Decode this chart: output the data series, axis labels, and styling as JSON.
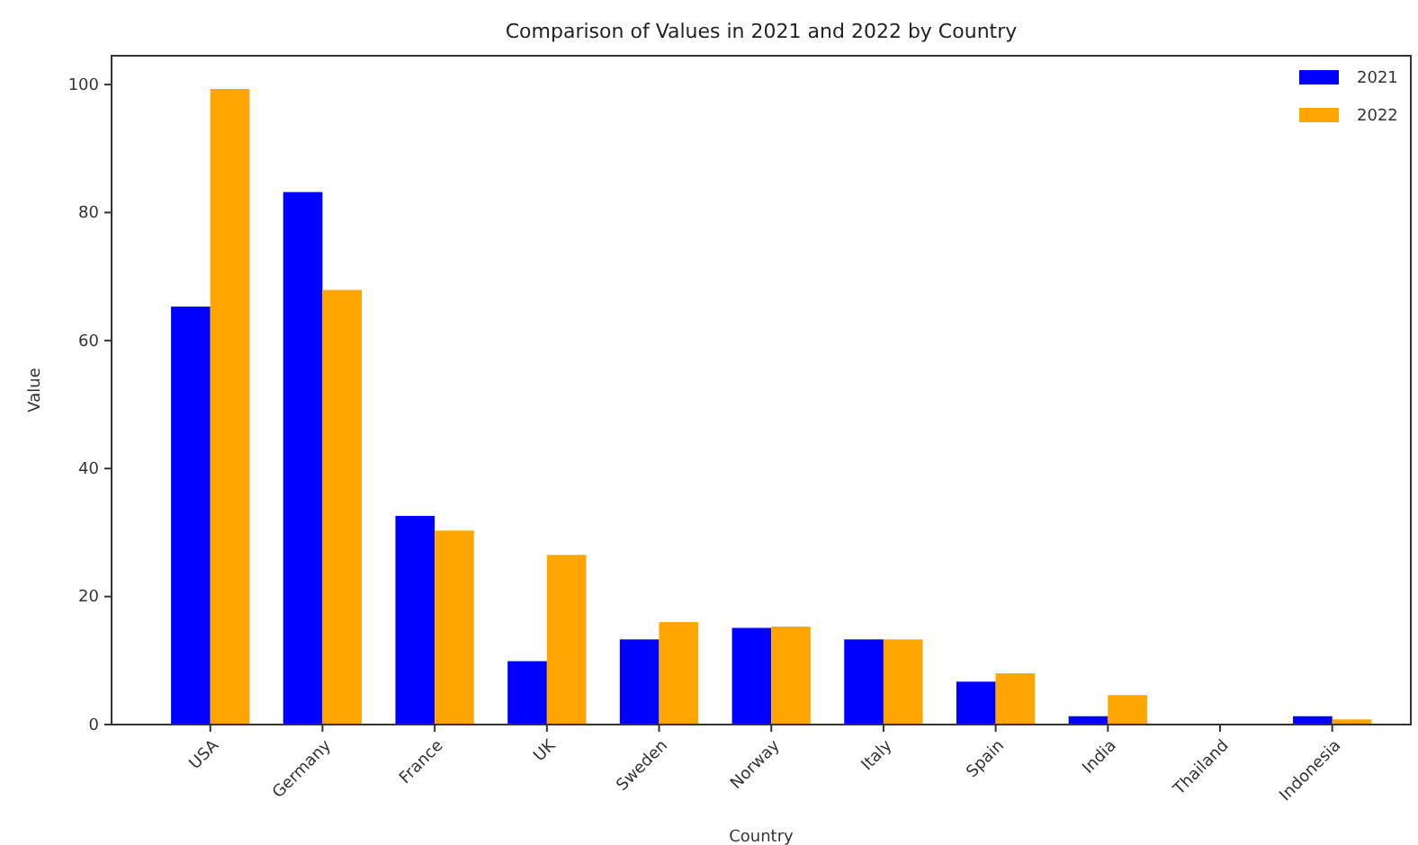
{
  "chart_data": {
    "type": "bar",
    "title": "Comparison of Values in 2021 and 2022 by Country",
    "xlabel": "Country",
    "ylabel": "Value",
    "categories": [
      "USA",
      "Germany",
      "France",
      "UK",
      "Sweden",
      "Norway",
      "Italy",
      "Spain",
      "India",
      "Thailand",
      "Indonesia"
    ],
    "series": [
      {
        "name": "2021",
        "color": "#0000ff",
        "values": [
          65.3,
          83.2,
          32.6,
          9.9,
          13.3,
          15.1,
          13.3,
          6.7,
          1.3,
          null,
          1.3
        ]
      },
      {
        "name": "2022",
        "color": "#ffa500",
        "values": [
          99.3,
          67.9,
          30.3,
          26.5,
          16.0,
          15.3,
          13.3,
          8.0,
          4.6,
          null,
          0.8
        ]
      }
    ],
    "ylim": [
      0,
      104.5
    ],
    "yticks": [
      0,
      20,
      40,
      60,
      80,
      100
    ],
    "legend": "top right",
    "grid": false
  }
}
